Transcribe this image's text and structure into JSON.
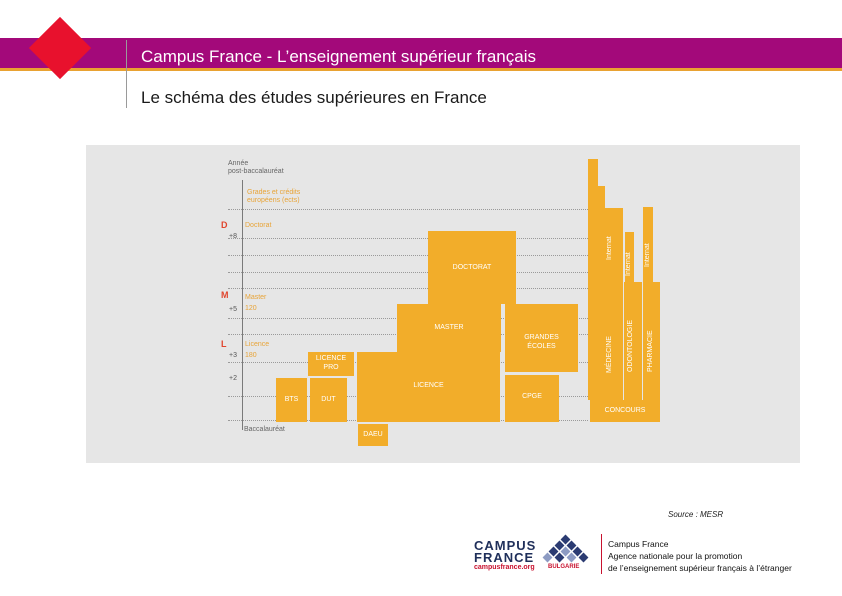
{
  "header": {
    "title": "Campus France - L’enseignement supérieur français",
    "subtitle": "Le schéma des études supérieures en France",
    "bar_color": "#a3097a",
    "line_color": "#e9a232",
    "logo_color": "#e8112d"
  },
  "diagram": {
    "axis": {
      "title_line1": "Année",
      "title_line2": "post-baccalauréat",
      "ects_line1": "Grades et crédits",
      "ects_line2": "européens (ects)",
      "baccalaureat": "Baccalauréat"
    },
    "grades": [
      {
        "letter": "D",
        "tick": "+8",
        "name": "Doctorat",
        "credits": ""
      },
      {
        "letter": "M",
        "tick": "+5",
        "name": "Master",
        "credits": "120"
      },
      {
        "letter": "L",
        "tick": "+3",
        "name": "Licence",
        "credits": "180"
      }
    ],
    "tick_plus2": "+2",
    "blocks": {
      "doctorat": "DOCTORAT",
      "master": "MASTER",
      "grandes_ecoles_1": "GRANDES",
      "grandes_ecoles_2": "ÉCOLES",
      "licence_pro_1": "LICENCE",
      "licence_pro_2": "PRO",
      "licence": "LICENCE",
      "bts": "BTS",
      "dut": "DUT",
      "cpge": "CPGE",
      "concours": "CONCOURS",
      "daeu": "DAEU",
      "medecine": "MÉDECINE",
      "odontologie": "ODONTOLOGIE",
      "pharmacie": "PHARMACIE",
      "internat": "Internat"
    },
    "colors": {
      "block": "#f2ad2a",
      "panel": "#e6e6e6",
      "grade_letter": "#e0452d",
      "orange_text": "#e8a438"
    }
  },
  "source": "Source : MESR",
  "footer": {
    "logo_line1": "CAMPUS",
    "logo_line2": "FRANCE",
    "logo_url": "campusfrance.org",
    "logo_country": "BULGARIE",
    "info_line1": "Campus France",
    "info_line2": "Agence nationale pour la promotion",
    "info_line3": "de l’enseignement supérieur français à l’étranger"
  }
}
